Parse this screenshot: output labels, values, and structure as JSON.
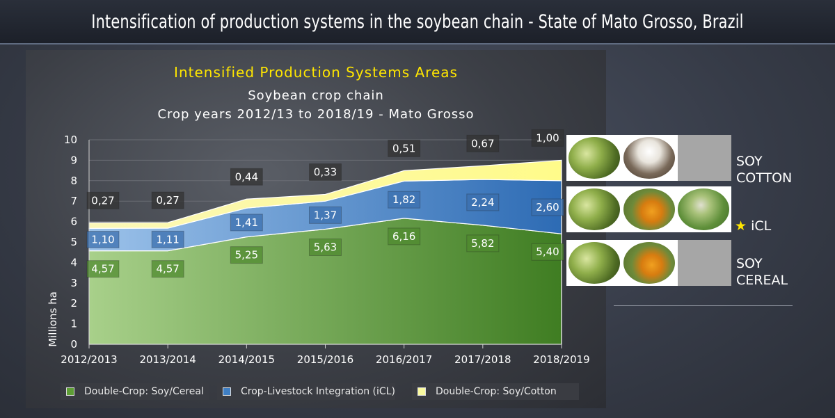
{
  "banner": {
    "title": "Intensification of production systems in the soybean chain - State of Mato Grosso, Brazil"
  },
  "chart_data": {
    "type": "area",
    "stacked": true,
    "title": "Intensified Production Systems Areas",
    "subtitle_line1": "Soybean crop chain",
    "subtitle_line2": "Crop years 2012/13 to 2018/19 - Mato Grosso",
    "ylabel": "Millions  ha",
    "xlabel": "",
    "ylim": [
      0,
      10
    ],
    "yticks": [
      "0",
      "1",
      "2",
      "3",
      "4",
      "5",
      "6",
      "7",
      "8",
      "9",
      "10"
    ],
    "grid": true,
    "legend_position": "bottom",
    "categories": [
      "2012/2013",
      "2013/2014",
      "2014/2015",
      "2015/2016",
      "2016/2017",
      "2017/2018",
      "2018/2019"
    ],
    "series": [
      {
        "name": "Double-Crop: Soy/Cereal",
        "values": [
          4.57,
          4.57,
          5.25,
          5.63,
          6.16,
          5.82,
          5.4
        ],
        "labels": [
          "4,57",
          "4,57",
          "5,25",
          "5,63",
          "6,16",
          "5,82",
          "5,40"
        ],
        "color": "#5e9e35"
      },
      {
        "name": "Crop-Livestock Integration (iCL)",
        "values": [
          1.1,
          1.11,
          1.41,
          1.37,
          1.82,
          2.24,
          2.6
        ],
        "labels": [
          "1,10",
          "1,11",
          "1,41",
          "1,37",
          "1,82",
          "2,24",
          "2,60"
        ],
        "color": "#3f7fc4"
      },
      {
        "name": "Double-Crop: Soy/Cotton",
        "values": [
          0.27,
          0.27,
          0.44,
          0.33,
          0.51,
          0.67,
          1.0
        ],
        "labels": [
          "0,27",
          "0,27",
          "0,44",
          "0,33",
          "0,51",
          "0,67",
          "1,00"
        ],
        "color": "#fafaa0"
      }
    ]
  },
  "side": {
    "soy_cotton": {
      "line1": "SOY",
      "line2": "COTTON"
    },
    "icl": {
      "star": "★",
      "label": "iCL"
    },
    "soy_cereal": {
      "line1": "SOY",
      "line2": "CEREAL"
    },
    "photos": [
      "soybean-photo-icon",
      "cotton-photo-icon",
      "corn-photo-icon",
      "cattle-pasture-photo-icon"
    ]
  }
}
